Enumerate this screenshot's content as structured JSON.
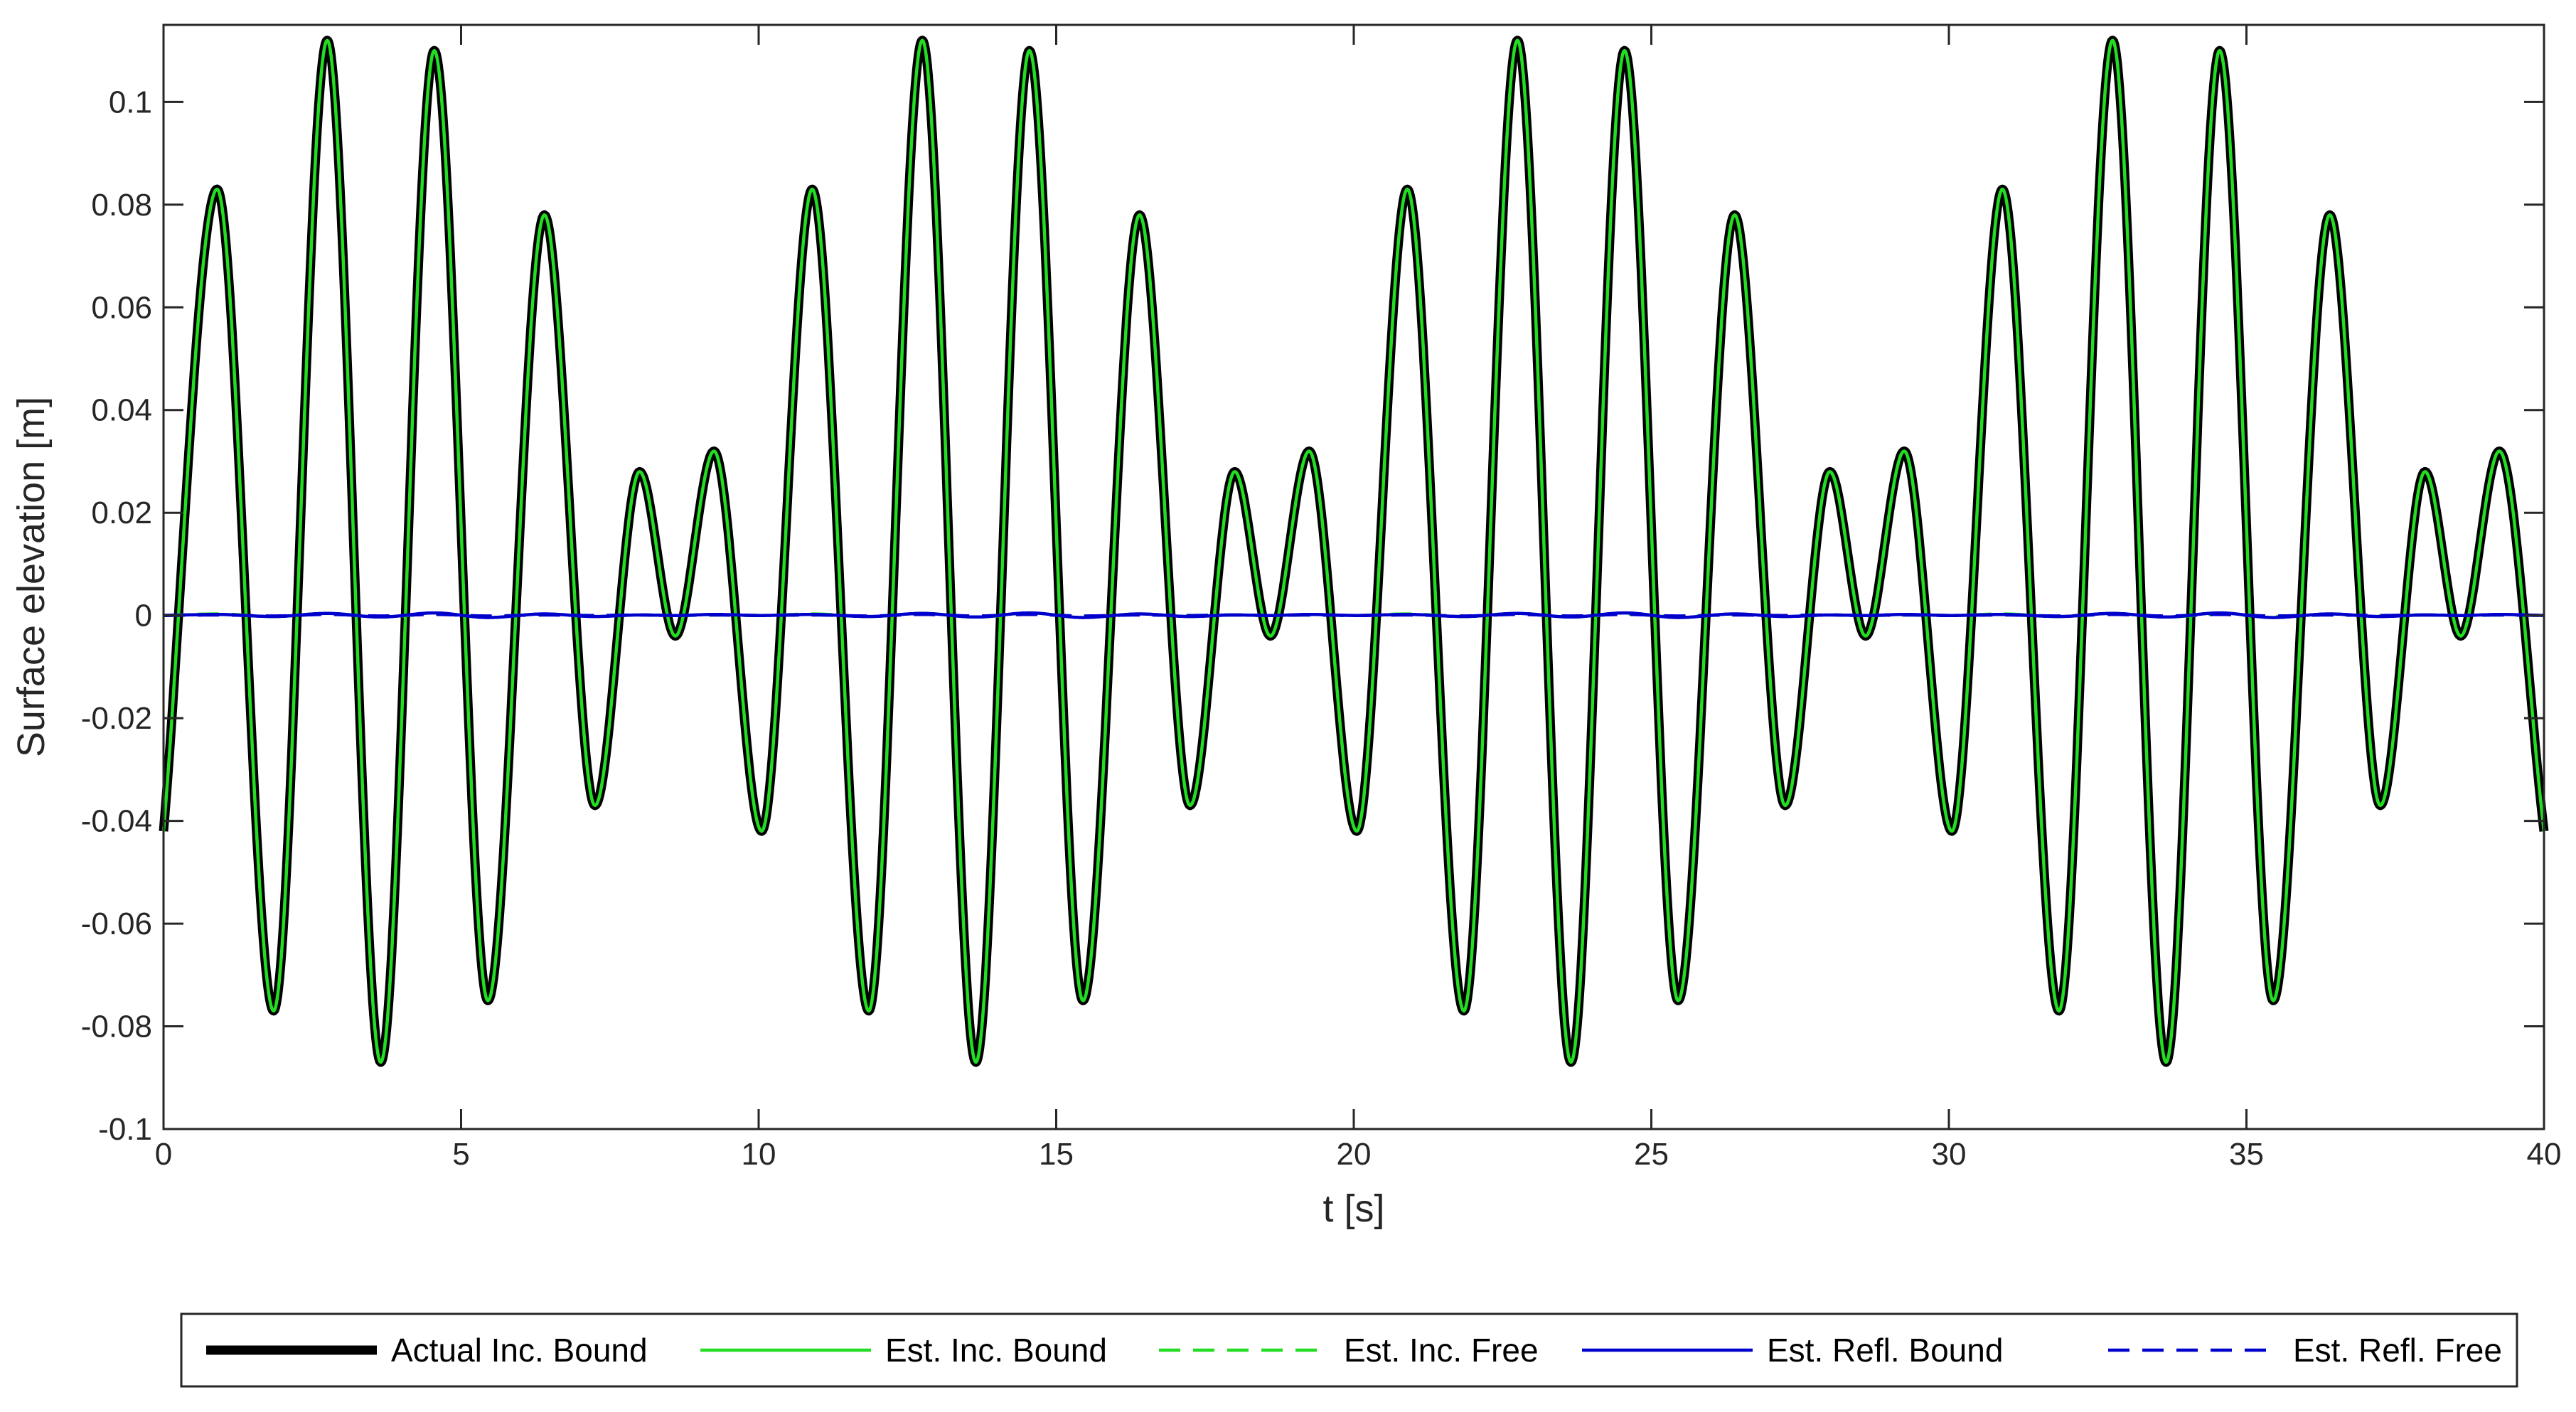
{
  "chart_data": {
    "type": "line",
    "xlabel": "t [s]",
    "ylabel": "Surface elevation [m]",
    "xlim": [
      0,
      40
    ],
    "ylim": [
      -0.1,
      0.115
    ],
    "x_ticks": [
      0,
      5,
      10,
      15,
      20,
      25,
      30,
      35,
      40
    ],
    "x_tick_labels": [
      "0",
      "5",
      "10",
      "15",
      "20",
      "25",
      "30",
      "35",
      "40"
    ],
    "y_ticks": [
      -0.1,
      -0.08,
      -0.06,
      -0.04,
      -0.02,
      0,
      0.02,
      0.04,
      0.06,
      0.08,
      0.1
    ],
    "y_tick_labels": [
      "-0.1",
      "-0.08",
      "-0.06",
      "-0.04",
      "-0.02",
      "0",
      "0.02",
      "0.04",
      "0.06",
      "0.08",
      "0.1"
    ],
    "grid": false,
    "legend_position": "bottom",
    "repeat_period": 20,
    "x": [
      0,
      0.9,
      1.85,
      2.75,
      3.65,
      4.55,
      5.45,
      6.4,
      7.25,
      8.0,
      8.6,
      9.25,
      10.05,
      10.9,
      11.85,
      12.75,
      13.65,
      14.55,
      15.45,
      16.4,
      17.25,
      18.0,
      18.6,
      19.25,
      20.05,
      20.9,
      21.85,
      22.75,
      23.65,
      24.55,
      25.45,
      26.4,
      27.25,
      28.0,
      28.6,
      29.25,
      30.05,
      30.9,
      31.85,
      32.75,
      33.65,
      34.55,
      35.45,
      36.4,
      37.25,
      38.0,
      38.6,
      39.25,
      40
    ],
    "series": [
      {
        "name": "Actual Inc. Bound",
        "color": "#000000",
        "style": "solid",
        "width": "thick",
        "values": [
          -0.042,
          0.083,
          -0.077,
          0.112,
          -0.087,
          0.11,
          -0.075,
          0.078,
          -0.037,
          0.028,
          -0.004,
          0.032,
          -0.042,
          0.083,
          -0.077,
          0.112,
          -0.087,
          0.11,
          -0.075,
          0.078,
          -0.037,
          0.028,
          -0.004,
          0.032,
          -0.042,
          0.083,
          -0.077,
          0.112,
          -0.087,
          0.11,
          -0.075,
          0.078,
          -0.037,
          0.028,
          -0.004,
          0.032,
          -0.042,
          0.083,
          -0.077,
          0.112,
          -0.087,
          0.11,
          -0.075,
          0.078,
          -0.037,
          0.028,
          -0.004,
          0.032,
          -0.042
        ]
      },
      {
        "name": "Est. Inc. Bound",
        "color": "#22dd22",
        "style": "solid",
        "width": "normal",
        "values": [
          -0.042,
          0.083,
          -0.077,
          0.112,
          -0.087,
          0.11,
          -0.075,
          0.078,
          -0.037,
          0.028,
          -0.004,
          0.032,
          -0.042,
          0.083,
          -0.077,
          0.112,
          -0.087,
          0.11,
          -0.075,
          0.078,
          -0.037,
          0.028,
          -0.004,
          0.032,
          -0.042,
          0.083,
          -0.077,
          0.112,
          -0.087,
          0.11,
          -0.075,
          0.078,
          -0.037,
          0.028,
          -0.004,
          0.032,
          -0.042,
          0.083,
          -0.077,
          0.112,
          -0.087,
          0.11,
          -0.075,
          0.078,
          -0.037,
          0.028,
          -0.004,
          0.032,
          -0.042
        ]
      },
      {
        "name": "Est. Inc. Free",
        "color": "#22dd22",
        "style": "dashed",
        "width": "normal",
        "values": [
          0,
          0.0003,
          -0.0002,
          0.0004,
          -0.0003,
          0.0003,
          -0.0002,
          0.0002,
          -0.0001,
          0.0001,
          0,
          0.0001,
          0,
          0.0003,
          -0.0002,
          0.0004,
          -0.0003,
          0.0003,
          -0.0002,
          0.0002,
          -0.0001,
          0.0001,
          0,
          0.0001,
          0,
          0.0003,
          -0.0002,
          0.0004,
          -0.0003,
          0.0003,
          -0.0002,
          0.0002,
          -0.0001,
          0.0001,
          0,
          0.0001,
          0,
          0.0003,
          -0.0002,
          0.0004,
          -0.0003,
          0.0003,
          -0.0002,
          0.0002,
          -0.0001,
          0.0001,
          0,
          0.0001,
          0
        ]
      },
      {
        "name": "Est. Refl. Bound",
        "color": "#0000cc",
        "style": "solid",
        "width": "normal",
        "values": [
          0,
          0.0002,
          -0.0002,
          0.0004,
          -0.0003,
          0.0005,
          -0.0004,
          0.0003,
          -0.0002,
          0.0001,
          0,
          0.0002,
          0,
          0.0002,
          -0.0002,
          0.0004,
          -0.0003,
          0.0005,
          -0.0004,
          0.0003,
          -0.0002,
          0.0001,
          0,
          0.0002,
          0,
          0.0002,
          -0.0002,
          0.0004,
          -0.0003,
          0.0005,
          -0.0004,
          0.0003,
          -0.0002,
          0.0001,
          0,
          0.0002,
          0,
          0.0002,
          -0.0002,
          0.0004,
          -0.0003,
          0.0005,
          -0.0004,
          0.0003,
          -0.0002,
          0.0001,
          0,
          0.0002,
          0
        ]
      },
      {
        "name": "Est. Refl. Free",
        "color": "#0000cc",
        "style": "dashed",
        "width": "normal",
        "values": [
          0,
          0.0001,
          -0.0001,
          0.0002,
          -0.0001,
          0.0002,
          -0.0001,
          0.0001,
          0,
          0.0001,
          0,
          0.0001,
          0,
          0.0001,
          -0.0001,
          0.0002,
          -0.0001,
          0.0002,
          -0.0001,
          0.0001,
          0,
          0.0001,
          0,
          0.0001,
          0,
          0.0001,
          -0.0001,
          0.0002,
          -0.0001,
          0.0002,
          -0.0001,
          0.0001,
          0,
          0.0001,
          0,
          0.0001,
          0,
          0.0001,
          -0.0001,
          0.0002,
          -0.0001,
          0.0002,
          -0.0001,
          0.0001,
          0,
          0.0001,
          0,
          0.0001,
          0
        ]
      }
    ]
  }
}
